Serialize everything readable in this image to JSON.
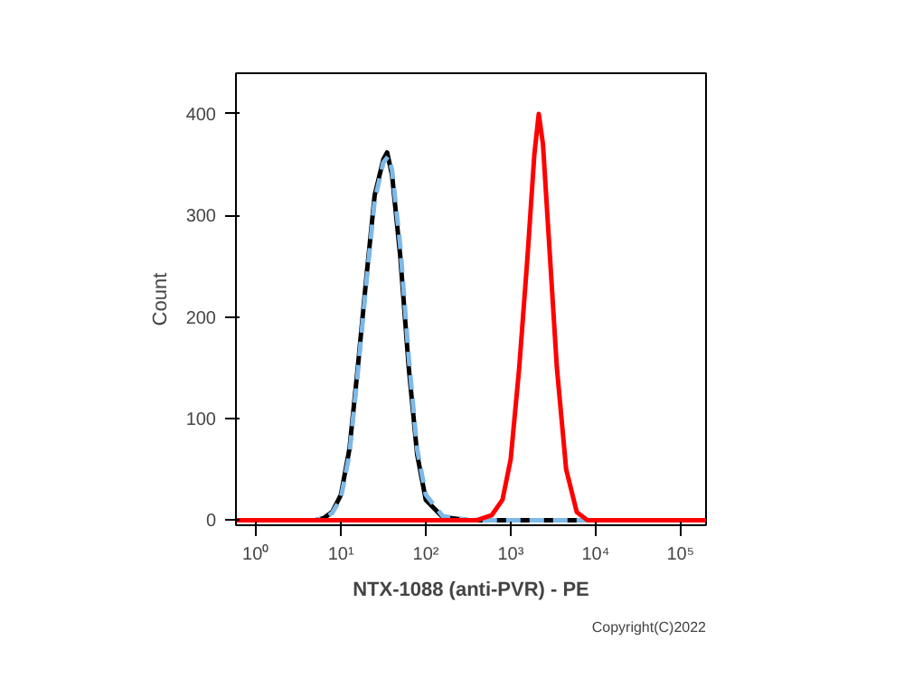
{
  "chart_data": {
    "type": "line",
    "xlabel": "NTX-1088 (anti-PVR) - PE",
    "ylabel": "Count",
    "log": "x",
    "grid": false,
    "marker": "none",
    "annotations": [
      "Copyright(C)2022"
    ],
    "xlim": [
      0.58,
      200000
    ],
    "ylim": [
      -5,
      440
    ],
    "xticks": [
      {
        "value": 1,
        "label": "10⁰"
      },
      {
        "value": 10,
        "label": "10¹"
      },
      {
        "value": 100,
        "label": "10²"
      },
      {
        "value": 1000,
        "label": "10³"
      },
      {
        "value": 10000,
        "label": "10⁴"
      },
      {
        "value": 100000,
        "label": "10⁵"
      }
    ],
    "yticks": [
      0,
      100,
      200,
      300,
      400
    ],
    "series": [
      {
        "color": "#000000",
        "line_style": "solid",
        "x": [
          0.58,
          5,
          6.3,
          7.9,
          10,
          12.6,
          15.8,
          20,
          25,
          31.6,
          35,
          40,
          50,
          63,
          79,
          100,
          158,
          316,
          200000
        ],
        "values": [
          0,
          0,
          2,
          8,
          25,
          70,
          150,
          240,
          320,
          355,
          362,
          340,
          260,
          150,
          65,
          20,
          3,
          0,
          0
        ]
      },
      {
        "color": "#7db9e8",
        "line_style": "dashed",
        "x": [
          0.58,
          5,
          6.3,
          7.9,
          10,
          12.6,
          15.8,
          20,
          25,
          31.6,
          36,
          40,
          50,
          63,
          79,
          100,
          158,
          316,
          200000
        ],
        "values": [
          0,
          0,
          2,
          7,
          22,
          65,
          145,
          235,
          315,
          352,
          358,
          345,
          270,
          160,
          70,
          25,
          4,
          0,
          0
        ]
      },
      {
        "color": "#ff0000",
        "line_style": "solid",
        "x": [
          0.58,
          400,
          600,
          800,
          1000,
          1260,
          1580,
          1900,
          2140,
          2400,
          2800,
          3500,
          4500,
          6000,
          8000,
          200000
        ],
        "values": [
          0,
          0,
          5,
          20,
          60,
          150,
          260,
          360,
          400,
          370,
          280,
          150,
          50,
          8,
          0,
          0
        ]
      }
    ]
  }
}
